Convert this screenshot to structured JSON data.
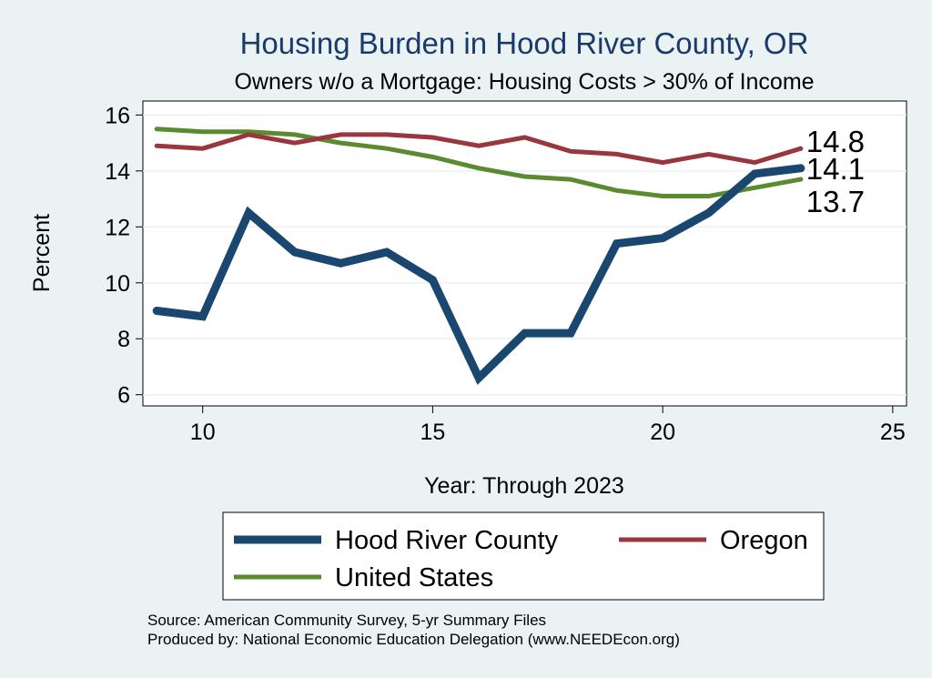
{
  "chart_data": {
    "type": "line",
    "title": "Housing Burden in Hood River County, OR",
    "subtitle": "Owners w/o a Mortgage: Housing Costs > 30% of Income",
    "xlabel": "Year: Through 2023",
    "ylabel": "Percent",
    "xlim": [
      8.7,
      25.3
    ],
    "ylim": [
      5.6,
      16.5
    ],
    "xticks": [
      10,
      15,
      20,
      25
    ],
    "yticks": [
      6,
      8,
      10,
      12,
      14,
      16
    ],
    "grid": true,
    "legend_position": "bottom",
    "x": [
      9,
      10,
      11,
      12,
      13,
      14,
      15,
      16,
      17,
      18,
      19,
      20,
      21,
      22,
      23
    ],
    "series": [
      {
        "name": "Hood River County",
        "color": "#1a4770",
        "width": 9,
        "values": [
          9.0,
          8.8,
          12.5,
          11.1,
          10.7,
          11.1,
          10.1,
          6.6,
          8.2,
          8.2,
          11.4,
          11.6,
          12.5,
          13.9,
          14.1
        ],
        "end_label": "14.1"
      },
      {
        "name": "Oregon",
        "color": "#99363e",
        "width": 5,
        "values": [
          14.9,
          14.8,
          15.3,
          15.0,
          15.3,
          15.3,
          15.2,
          14.9,
          15.2,
          14.7,
          14.6,
          14.3,
          14.6,
          14.3,
          14.8
        ],
        "end_label": "14.8"
      },
      {
        "name": "United States",
        "color": "#5b8b2f",
        "width": 5,
        "values": [
          15.5,
          15.4,
          15.4,
          15.3,
          15.0,
          14.8,
          14.5,
          14.1,
          13.8,
          13.7,
          13.3,
          13.1,
          13.1,
          13.4,
          13.7
        ],
        "end_label": "13.7"
      }
    ],
    "source_lines": [
      "Source: American Community Survey, 5-yr Summary Files",
      "Produced by: National Economic Education Delegation (www.NEEDEcon.org)"
    ]
  }
}
